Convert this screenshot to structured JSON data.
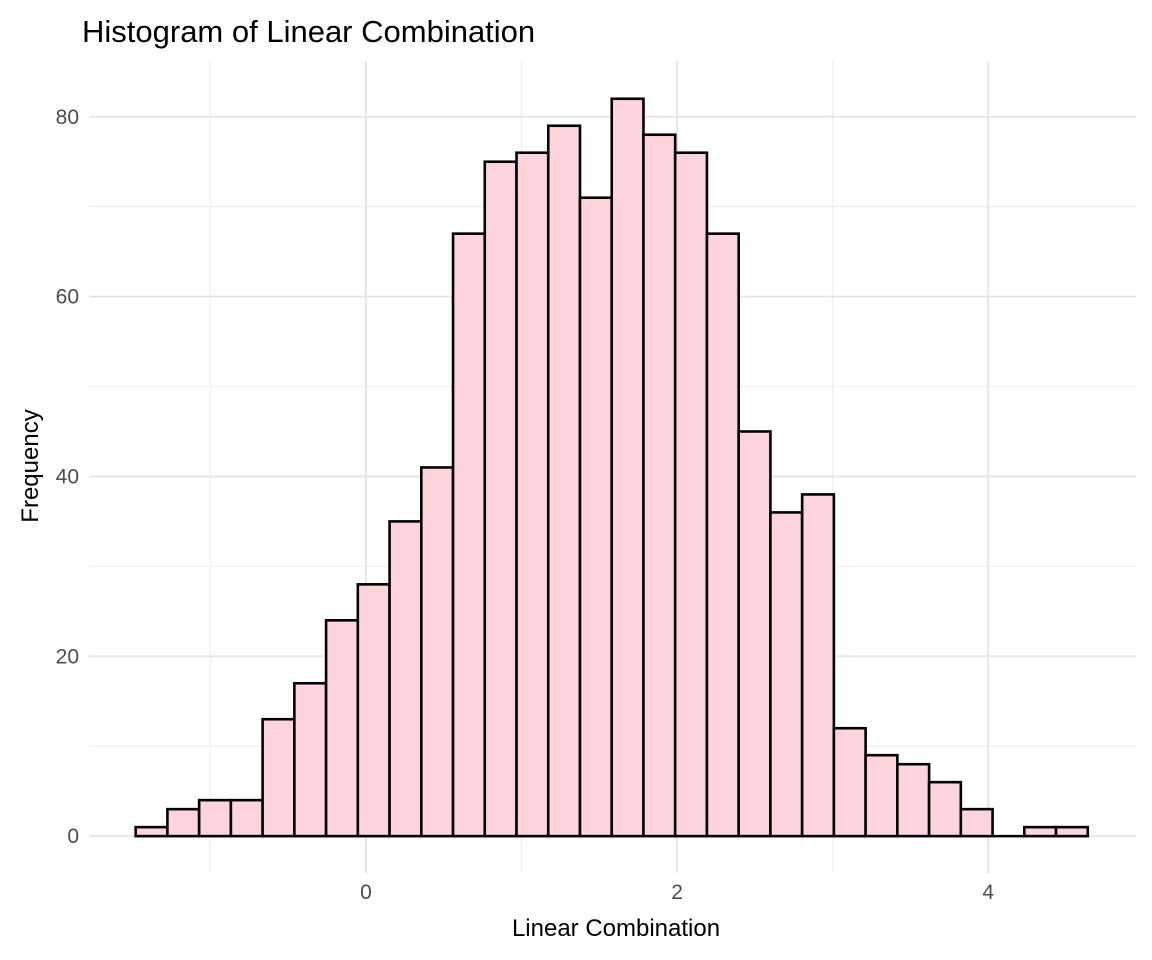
{
  "chart_data": {
    "type": "bar",
    "subtype": "histogram",
    "title": "Histogram of Linear Combination",
    "xlabel": "Linear Combination",
    "ylabel": "Frequency",
    "sample_size": 1000,
    "bin_start": -1.48,
    "bin_width": 0.204,
    "counts": [
      1,
      3,
      4,
      4,
      13,
      17,
      24,
      28,
      35,
      41,
      67,
      75,
      76,
      79,
      71,
      82,
      78,
      76,
      67,
      45,
      36,
      38,
      12,
      9,
      8,
      6,
      3,
      0,
      1,
      1
    ],
    "x_ticks": [
      0,
      2,
      4
    ],
    "x_minor_gridlines": [
      -1,
      1,
      3
    ],
    "y_ticks": [
      0,
      20,
      40,
      60,
      80
    ],
    "y_minor_gridlines": [
      10,
      30,
      50,
      70
    ],
    "xlim": [
      -1.78,
      4.95
    ],
    "ylim": [
      -4.1,
      86.2
    ],
    "grid": true,
    "legend": false,
    "colors": {
      "bar_fill": "#fdd3dc",
      "bar_stroke": "#000000",
      "grid_major": "#e7e7e7",
      "grid_minor": "#f1f1f1",
      "axis_text": "#4d4d4d",
      "title_text": "#000000",
      "background": "#ffffff"
    }
  }
}
